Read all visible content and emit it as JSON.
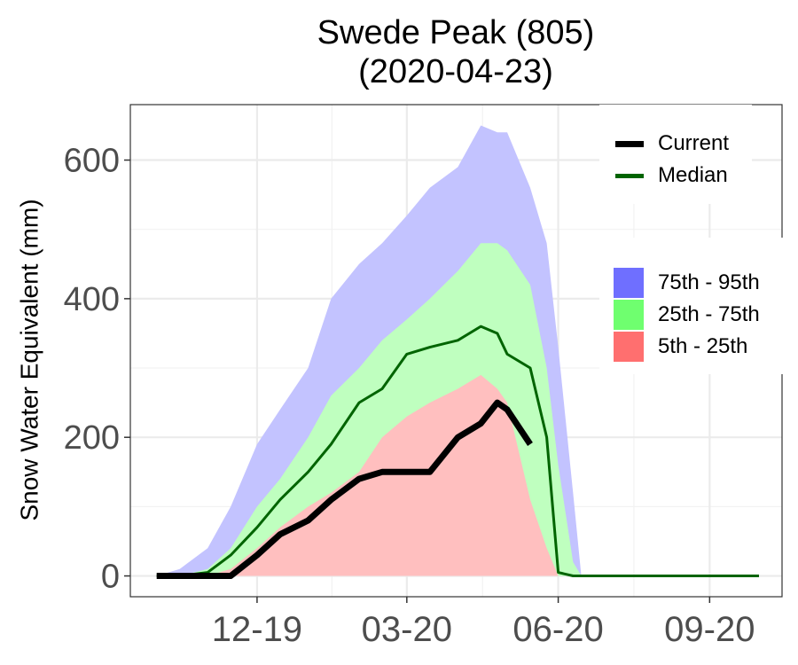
{
  "chart_data": {
    "type": "area",
    "title": "Swede Peak (805)",
    "subtitle": "(2020-04-23)",
    "xlabel": "",
    "ylabel": "Snow Water Equivalent (mm)",
    "x_ticks": [
      "12-19",
      "03-20",
      "06-20",
      "09-20"
    ],
    "x_tick_dates": [
      "2019-12-01",
      "2020-03-01",
      "2020-06-01",
      "2020-09-01"
    ],
    "xlim": [
      "2019-09-15",
      "2020-10-15"
    ],
    "ylim": [
      -30,
      680
    ],
    "y_ticks": [
      0,
      200,
      400,
      600
    ],
    "grid": true,
    "legend_lines": [
      {
        "name": "Current",
        "color": "#000000"
      },
      {
        "name": "Median",
        "color": "#006400"
      }
    ],
    "legend_bands": [
      {
        "name": "75th - 95th",
        "color": "#6F6FFF"
      },
      {
        "name": "25th - 75th",
        "color": "#6FFF6F"
      },
      {
        "name": "5th - 25th",
        "color": "#FF6F6F"
      }
    ],
    "band_colors": {
      "p95": "#C3C3FF",
      "p75": "#BFFFBF",
      "p25": "#FFBFBF"
    },
    "x": [
      "2019-10-01",
      "2019-10-15",
      "2019-11-01",
      "2019-11-15",
      "2019-12-01",
      "2019-12-15",
      "2020-01-01",
      "2020-01-15",
      "2020-02-01",
      "2020-02-15",
      "2020-03-01",
      "2020-03-15",
      "2020-04-01",
      "2020-04-15",
      "2020-04-25",
      "2020-05-01",
      "2020-05-15",
      "2020-05-25",
      "2020-06-01",
      "2020-06-10",
      "2020-06-15",
      "2020-07-01",
      "2020-09-01",
      "2020-10-01"
    ],
    "series": [
      {
        "name": "p95",
        "values": [
          0,
          10,
          40,
          100,
          190,
          240,
          300,
          400,
          450,
          480,
          520,
          560,
          590,
          650,
          640,
          640,
          560,
          480,
          330,
          120,
          0,
          0,
          0,
          0
        ]
      },
      {
        "name": "p75",
        "values": [
          0,
          0,
          10,
          40,
          100,
          140,
          200,
          260,
          300,
          340,
          370,
          400,
          440,
          480,
          480,
          470,
          420,
          300,
          160,
          20,
          0,
          0,
          0,
          0
        ]
      },
      {
        "name": "p25",
        "values": [
          0,
          0,
          0,
          10,
          40,
          70,
          100,
          120,
          150,
          200,
          230,
          250,
          270,
          290,
          270,
          250,
          110,
          40,
          0,
          0,
          0,
          0,
          0,
          0
        ]
      },
      {
        "name": "Median",
        "values": [
          0,
          0,
          5,
          30,
          70,
          110,
          150,
          190,
          250,
          270,
          320,
          330,
          340,
          360,
          350,
          320,
          300,
          200,
          5,
          0,
          0,
          0,
          0,
          0
        ]
      },
      {
        "name": "Current",
        "values": [
          0,
          0,
          0,
          0,
          30,
          60,
          80,
          110,
          140,
          150,
          150,
          150,
          200,
          220,
          250,
          240,
          190,
          null,
          null,
          null,
          null,
          null,
          null,
          null
        ]
      }
    ]
  }
}
